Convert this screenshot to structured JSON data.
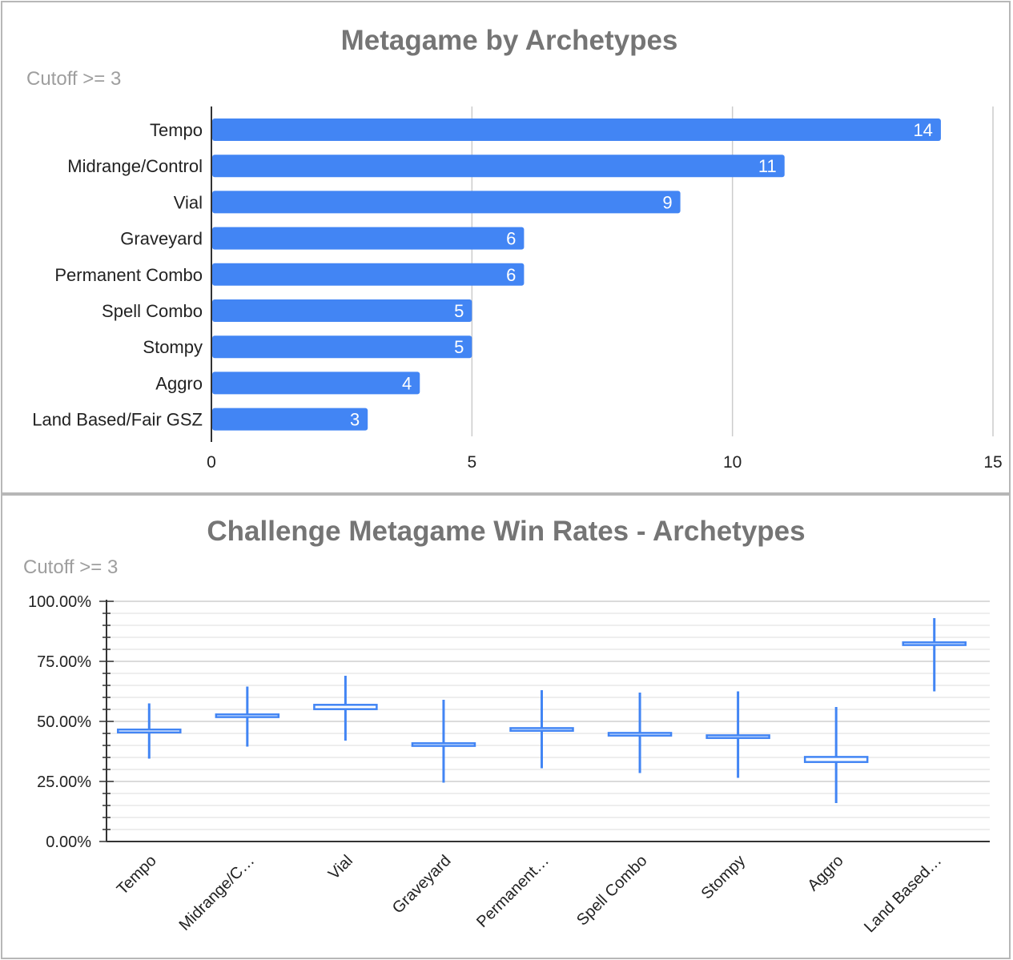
{
  "chart_data": [
    {
      "type": "bar",
      "orientation": "horizontal",
      "title": "Metagame by Archetypes",
      "subtitle": "Cutoff >= 3",
      "categories": [
        "Tempo",
        "Midrange/Control",
        "Vial",
        "Graveyard",
        "Permanent Combo",
        "Spell Combo",
        "Stompy",
        "Aggro",
        "Land Based/Fair GSZ"
      ],
      "values": [
        14,
        11,
        9,
        6,
        6,
        5,
        5,
        4,
        3
      ],
      "xlim": [
        0,
        15
      ],
      "x_ticks": [
        "0",
        "5",
        "10",
        "15"
      ],
      "grid": true,
      "data_labels": true,
      "bar_color": "#4285f4"
    },
    {
      "type": "candlestick",
      "title": "Challenge Metagame Win Rates - Archetypes",
      "subtitle": "Cutoff >= 3",
      "categories": [
        "Tempo",
        "Midrange/C…",
        "Vial",
        "Graveyard",
        "Permanent…",
        "Spell Combo",
        "Stompy",
        "Aggro",
        "Land Based…"
      ],
      "low": [
        34.5,
        39.5,
        42,
        24.5,
        30.5,
        28.5,
        26.5,
        16,
        62.5
      ],
      "high": [
        57.5,
        64.5,
        69,
        59,
        63,
        62,
        62.5,
        56,
        93
      ],
      "open": [
        46.2,
        52.5,
        55.5,
        40.5,
        46.8,
        44.8,
        43.8,
        34.8,
        82.5
      ],
      "close": [
        45.8,
        52.2,
        56.5,
        40.2,
        46.5,
        44.5,
        43.5,
        33.5,
        82.2
      ],
      "ylim": [
        0,
        100
      ],
      "y_ticks": [
        "0.00%",
        "25.00%",
        "50.00%",
        "75.00%",
        "100.00%"
      ],
      "grid": true,
      "color": "#4285f4"
    }
  ]
}
